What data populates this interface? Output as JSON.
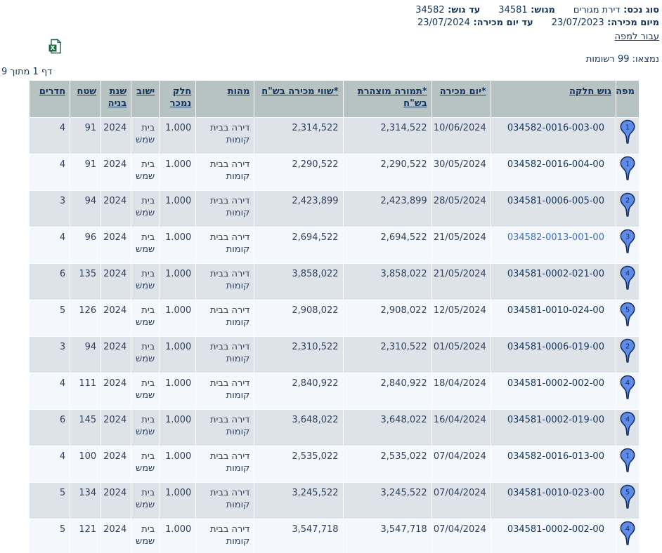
{
  "filters": {
    "line1": [
      {
        "label": "סוג נכס:",
        "value": "דירת מגורים"
      },
      {
        "label": "מגוש:",
        "value": "34581"
      },
      {
        "label": "עד גוש:",
        "value": "34582"
      }
    ],
    "line2": [
      {
        "label": "מיום מכירה:",
        "value": "23/07/2023"
      },
      {
        "label": "עד יום מכירה:",
        "value": "23/07/2024"
      }
    ],
    "map_link_label": "עבור למפה"
  },
  "results": {
    "found_text": "נמצאו: 99 רשומות",
    "page_text": "דף 1 מתוך 9"
  },
  "icons": {
    "excel_export": "excel-export-icon",
    "map_pin": "map-pin-icon"
  },
  "colors": {
    "header_bg": "#b7c3c3",
    "row_odd_bg": "#dee3ea",
    "row_even_bg": "#f4f7fb",
    "text_navy": "#14355f",
    "data_text": "#31415e",
    "visited_link": "#3f6fd1",
    "pin_fill": "#5d8cec",
    "pin_stroke": "#1c2f55",
    "excel_green": "#217346"
  },
  "table": {
    "headers": [
      {
        "key": "pin",
        "label": "מפה",
        "sortable": false,
        "width": 33
      },
      {
        "key": "gush",
        "label": "גוש חלקה",
        "sortable": true,
        "width": 178
      },
      {
        "key": "sale_date",
        "label": "*יום מכירה",
        "sortable": true,
        "width": 84
      },
      {
        "key": "declared_amount",
        "label": "*תמורה מוצהרת בש\"ח",
        "sortable": true,
        "width": 126
      },
      {
        "key": "sale_value",
        "label": "*שווי מכירה בש\"ח",
        "sortable": true,
        "width": 126
      },
      {
        "key": "nature",
        "label": "מהות",
        "sortable": true,
        "width": 83
      },
      {
        "key": "part_sold",
        "label": "חלק נמכר",
        "sortable": true,
        "width": 52
      },
      {
        "key": "city",
        "label": "ישוב",
        "sortable": true,
        "width": 40
      },
      {
        "key": "build_year",
        "label": "שנת בניה",
        "sortable": true,
        "width": 43
      },
      {
        "key": "area",
        "label": "שטח",
        "sortable": true,
        "width": 44
      },
      {
        "key": "rooms",
        "label": "חדרים",
        "sortable": true,
        "width": 58
      }
    ],
    "rows": [
      {
        "pin": "1",
        "gush": "034582-0016-003-00",
        "visited": false,
        "sale_date": "10/06/2024",
        "declared_amount": "2,314,522",
        "sale_value": "2,314,522",
        "nature": "דירה בבית קומות",
        "part_sold": "1.000",
        "city": "בית שמש",
        "build_year": "2024",
        "area": "91",
        "rooms": "4"
      },
      {
        "pin": "1",
        "gush": "034582-0016-004-00",
        "visited": false,
        "sale_date": "30/05/2024",
        "declared_amount": "2,290,522",
        "sale_value": "2,290,522",
        "nature": "דירה בבית קומות",
        "part_sold": "1.000",
        "city": "בית שמש",
        "build_year": "2024",
        "area": "91",
        "rooms": "4"
      },
      {
        "pin": "2",
        "gush": "034581-0006-005-00",
        "visited": false,
        "sale_date": "28/05/2024",
        "declared_amount": "2,423,899",
        "sale_value": "2,423,899",
        "nature": "דירה בבית קומות",
        "part_sold": "1.000",
        "city": "בית שמש",
        "build_year": "2024",
        "area": "94",
        "rooms": "3"
      },
      {
        "pin": "3",
        "gush": "034582-0013-001-00",
        "visited": true,
        "sale_date": "21/05/2024",
        "declared_amount": "2,694,522",
        "sale_value": "2,694,522",
        "nature": "דירה בבית קומות",
        "part_sold": "1.000",
        "city": "בית שמש",
        "build_year": "2024",
        "area": "96",
        "rooms": "4"
      },
      {
        "pin": "4",
        "gush": "034581-0002-021-00",
        "visited": false,
        "sale_date": "21/05/2024",
        "declared_amount": "3,858,022",
        "sale_value": "3,858,022",
        "nature": "דירה בבית קומות",
        "part_sold": "1.000",
        "city": "בית שמש",
        "build_year": "2024",
        "area": "135",
        "rooms": "6"
      },
      {
        "pin": "5",
        "gush": "034581-0010-024-00",
        "visited": false,
        "sale_date": "12/05/2024",
        "declared_amount": "2,908,022",
        "sale_value": "2,908,022",
        "nature": "דירה בבית קומות",
        "part_sold": "1.000",
        "city": "בית שמש",
        "build_year": "2024",
        "area": "126",
        "rooms": "5"
      },
      {
        "pin": "2",
        "gush": "034581-0006-019-00",
        "visited": false,
        "sale_date": "01/05/2024",
        "declared_amount": "2,310,522",
        "sale_value": "2,310,522",
        "nature": "דירה בבית קומות",
        "part_sold": "1.000",
        "city": "בית שמש",
        "build_year": "2024",
        "area": "94",
        "rooms": "3"
      },
      {
        "pin": "4",
        "gush": "034581-0002-002-00",
        "visited": false,
        "sale_date": "18/04/2024",
        "declared_amount": "2,840,922",
        "sale_value": "2,840,922",
        "nature": "דירה בבית קומות",
        "part_sold": "1.000",
        "city": "בית שמש",
        "build_year": "2024",
        "area": "111",
        "rooms": "4"
      },
      {
        "pin": "4",
        "gush": "034581-0002-019-00",
        "visited": false,
        "sale_date": "16/04/2024",
        "declared_amount": "3,648,022",
        "sale_value": "3,648,022",
        "nature": "דירה בבית קומות",
        "part_sold": "1.000",
        "city": "בית שמש",
        "build_year": "2024",
        "area": "145",
        "rooms": "6"
      },
      {
        "pin": "1",
        "gush": "034582-0016-013-00",
        "visited": false,
        "sale_date": "07/04/2024",
        "declared_amount": "2,535,022",
        "sale_value": "2,535,022",
        "nature": "דירה בבית קומות",
        "part_sold": "1.000",
        "city": "בית שמש",
        "build_year": "2024",
        "area": "100",
        "rooms": "4"
      },
      {
        "pin": "5",
        "gush": "034581-0010-023-00",
        "visited": false,
        "sale_date": "07/04/2024",
        "declared_amount": "3,245,522",
        "sale_value": "3,245,522",
        "nature": "דירה בבית קומות",
        "part_sold": "1.000",
        "city": "בית שמש",
        "build_year": "2024",
        "area": "134",
        "rooms": "5"
      },
      {
        "pin": "4",
        "gush": "034581-0002-002-00",
        "visited": false,
        "sale_date": "07/04/2024",
        "declared_amount": "3,547,718",
        "sale_value": "3,547,718",
        "nature": "דירה בבית קומות",
        "part_sold": "1.000",
        "city": "בית שמש",
        "build_year": "2024",
        "area": "121",
        "rooms": "5"
      }
    ]
  }
}
